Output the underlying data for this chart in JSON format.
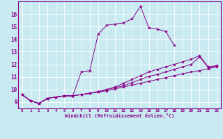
{
  "xlabel": "Windchill (Refroidissement éolien,°C)",
  "bg_color": "#c8eaf0",
  "line_color": "#8b008b",
  "xlim": [
    -0.5,
    23.5
  ],
  "ylim": [
    8.5,
    17.0
  ],
  "xticks": [
    0,
    1,
    2,
    3,
    4,
    5,
    6,
    7,
    8,
    9,
    10,
    11,
    12,
    13,
    14,
    15,
    16,
    17,
    18,
    19,
    20,
    21,
    22,
    23
  ],
  "yticks": [
    9,
    10,
    11,
    12,
    13,
    14,
    15,
    16
  ],
  "series": [
    [
      9.6,
      9.1,
      8.9,
      9.3,
      9.4,
      9.5,
      9.5,
      11.4,
      11.5,
      14.4,
      15.1,
      15.2,
      15.3,
      15.6,
      16.6,
      14.9,
      14.8,
      14.6,
      13.5,
      null,
      null,
      null,
      null,
      null
    ],
    [
      9.6,
      9.1,
      8.9,
      9.3,
      9.4,
      9.5,
      9.5,
      9.6,
      9.7,
      9.8,
      10.0,
      10.2,
      10.5,
      10.8,
      11.1,
      11.4,
      11.6,
      11.8,
      12.0,
      12.2,
      12.4,
      12.7,
      11.8,
      11.9
    ],
    [
      9.6,
      9.1,
      8.9,
      9.3,
      9.4,
      9.5,
      9.5,
      9.6,
      9.7,
      9.8,
      9.9,
      10.05,
      10.2,
      10.35,
      10.5,
      10.65,
      10.8,
      10.95,
      11.1,
      11.25,
      11.4,
      11.5,
      11.65,
      11.8
    ],
    [
      9.6,
      9.1,
      8.9,
      9.3,
      9.4,
      9.5,
      9.5,
      9.6,
      9.7,
      9.85,
      10.0,
      10.15,
      10.3,
      10.55,
      10.8,
      11.05,
      11.2,
      11.4,
      11.6,
      11.8,
      12.0,
      12.6,
      11.75,
      11.85
    ]
  ]
}
